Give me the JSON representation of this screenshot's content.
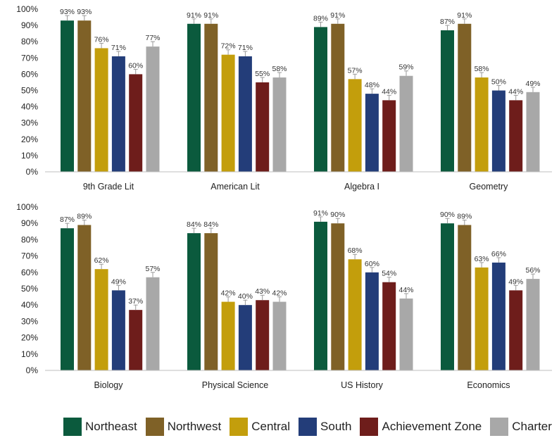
{
  "colors": {
    "Northeast": "#0b5a3d",
    "Northwest": "#7f6127",
    "Central": "#c39e0c",
    "South": "#233d79",
    "Achievement Zone": "#6e1d1b",
    "Charter": "#a8a8a8"
  },
  "legend": {
    "items": [
      "Northeast",
      "Northwest",
      "Central",
      "South",
      "Achievement Zone",
      "Charter"
    ]
  },
  "chart_data": [
    {
      "type": "bar",
      "title": "",
      "xlabel": "9th Grade Lit",
      "ylabel": "",
      "ylim": [
        0,
        100
      ],
      "yticks": [
        "0%",
        "10%",
        "20%",
        "30%",
        "40%",
        "50%",
        "60%",
        "70%",
        "80%",
        "90%",
        "100%"
      ],
      "categories": [
        "Northeast",
        "Northwest",
        "Central",
        "South",
        "Achievement Zone",
        "Charter"
      ],
      "values": [
        93,
        93,
        76,
        71,
        60,
        77
      ],
      "labels": [
        "93%",
        "93%",
        "76%",
        "71%",
        "60%",
        "77%"
      ]
    },
    {
      "type": "bar",
      "title": "",
      "xlabel": "American Lit",
      "ylabel": "",
      "ylim": [
        0,
        100
      ],
      "categories": [
        "Northeast",
        "Northwest",
        "Central",
        "South",
        "Achievement Zone",
        "Charter"
      ],
      "values": [
        91,
        91,
        72,
        71,
        55,
        58
      ],
      "labels": [
        "91%",
        "91%",
        "72%",
        "71%",
        "55%",
        "58%"
      ]
    },
    {
      "type": "bar",
      "title": "",
      "xlabel": "Algebra I",
      "ylabel": "",
      "ylim": [
        0,
        100
      ],
      "categories": [
        "Northeast",
        "Northwest",
        "Central",
        "South",
        "Achievement Zone",
        "Charter"
      ],
      "values": [
        89,
        91,
        57,
        48,
        44,
        59
      ],
      "labels": [
        "89%",
        "91%",
        "57%",
        "48%",
        "44%",
        "59%"
      ]
    },
    {
      "type": "bar",
      "title": "",
      "xlabel": "Geometry",
      "ylabel": "",
      "ylim": [
        0,
        100
      ],
      "categories": [
        "Northeast",
        "Northwest",
        "Central",
        "South",
        "Achievement Zone",
        "Charter"
      ],
      "values": [
        87,
        91,
        58,
        50,
        44,
        49
      ],
      "labels": [
        "87%",
        "91%",
        "58%",
        "50%",
        "44%",
        "49%"
      ]
    },
    {
      "type": "bar",
      "title": "",
      "xlabel": "Biology",
      "ylabel": "",
      "ylim": [
        0,
        100
      ],
      "yticks": [
        "0%",
        "10%",
        "20%",
        "30%",
        "40%",
        "50%",
        "60%",
        "70%",
        "80%",
        "90%",
        "100%"
      ],
      "categories": [
        "Northeast",
        "Northwest",
        "Central",
        "South",
        "Achievement Zone",
        "Charter"
      ],
      "values": [
        87,
        89,
        62,
        49,
        37,
        57
      ],
      "labels": [
        "87%",
        "89%",
        "62%",
        "49%",
        "37%",
        "57%"
      ]
    },
    {
      "type": "bar",
      "title": "",
      "xlabel": "Physical Science",
      "ylabel": "",
      "ylim": [
        0,
        100
      ],
      "categories": [
        "Northeast",
        "Northwest",
        "Central",
        "South",
        "Achievement Zone",
        "Charter"
      ],
      "values": [
        84,
        84,
        42,
        40,
        43,
        42
      ],
      "labels": [
        "84%",
        "84%",
        "42%",
        "40%",
        "43%",
        "42%"
      ]
    },
    {
      "type": "bar",
      "title": "",
      "xlabel": "US History",
      "ylabel": "",
      "ylim": [
        0,
        100
      ],
      "categories": [
        "Northeast",
        "Northwest",
        "Central",
        "South",
        "Achievement Zone",
        "Charter"
      ],
      "values": [
        91,
        90,
        68,
        60,
        54,
        44
      ],
      "labels": [
        "91%",
        "90%",
        "68%",
        "60%",
        "54%",
        "44%"
      ]
    },
    {
      "type": "bar",
      "title": "",
      "xlabel": "Economics",
      "ylabel": "",
      "ylim": [
        0,
        100
      ],
      "categories": [
        "Northeast",
        "Northwest",
        "Central",
        "South",
        "Achievement Zone",
        "Charter"
      ],
      "values": [
        90,
        89,
        63,
        66,
        49,
        56
      ],
      "labels": [
        "90%",
        "89%",
        "63%",
        "66%",
        "49%",
        "56%"
      ]
    }
  ]
}
